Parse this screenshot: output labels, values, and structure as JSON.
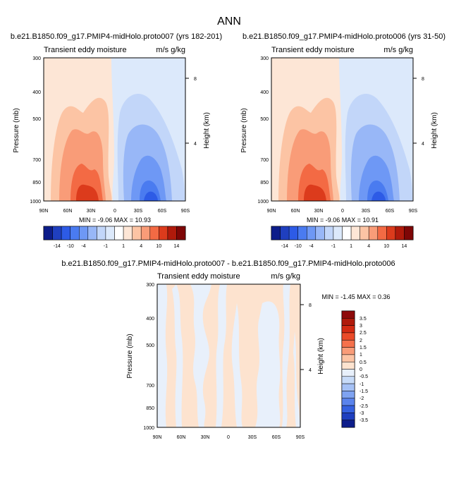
{
  "page_title": "ANN",
  "chart_data": [
    {
      "type": "heatmap",
      "title": "b.e21.B1850.f09_g17.PMIP4-midHolo.proto007 (yrs 182-201)",
      "subtitle_left": "Transient eddy moisture",
      "subtitle_right": "m/s g/kg",
      "ylabel": "Pressure (mb)",
      "ylabel_right": "Height (km)",
      "x_ticks": [
        "90N",
        "60N",
        "30N",
        "0",
        "30S",
        "60S",
        "90S"
      ],
      "y_ticks": [
        "300",
        "400",
        "500",
        "700",
        "850",
        "1000"
      ],
      "height_ticks": [
        "8",
        "4"
      ],
      "min_max": "MIN = -9.06   MAX = 10.93",
      "colorbar_labels": [
        "-14",
        "-10",
        "-4",
        "-1",
        "1",
        "4",
        "10",
        "14"
      ],
      "colorbar_colors": [
        "#0d1d8a",
        "#1f3fbf",
        "#2d5be6",
        "#4a7bf0",
        "#6e98f5",
        "#98b7f7",
        "#c2d6f9",
        "#dce9fb",
        "#ffffff",
        "#fde6d6",
        "#fcc4a4",
        "#f99c78",
        "#f36a44",
        "#dc3b1c",
        "#b01a0b",
        "#7e0606"
      ]
    },
    {
      "type": "heatmap",
      "title": "b.e21.B1850.f09_g17.PMIP4-midHolo.proto006 (yrs 31-50)",
      "subtitle_left": "Transient eddy moisture",
      "subtitle_right": "m/s g/kg",
      "ylabel": "Pressure (mb)",
      "ylabel_right": "Height (km)",
      "x_ticks": [
        "90N",
        "60N",
        "30N",
        "0",
        "30S",
        "60S",
        "90S"
      ],
      "y_ticks": [
        "300",
        "400",
        "500",
        "700",
        "850",
        "1000"
      ],
      "height_ticks": [
        "8",
        "4"
      ],
      "min_max": "MIN = -9.06   MAX = 10.91",
      "colorbar_labels": [
        "-14",
        "-10",
        "-4",
        "-1",
        "1",
        "4",
        "10",
        "14"
      ]
    },
    {
      "type": "heatmap",
      "title": "b.e21.B1850.f09_g17.PMIP4-midHolo.proto007 - b.e21.B1850.f09_g17.PMIP4-midHolo.proto006",
      "subtitle_left": "Transient eddy moisture",
      "subtitle_right": "m/s g/kg",
      "ylabel": "Pressure (mb)",
      "ylabel_right": "Height (km)",
      "x_ticks": [
        "90N",
        "60N",
        "30N",
        "0",
        "30S",
        "60S",
        "90S"
      ],
      "y_ticks": [
        "300",
        "400",
        "500",
        "700",
        "850",
        "1000"
      ],
      "height_ticks": [
        "8",
        "4"
      ],
      "min_max": "MIN = -1.45   MAX =  0.36",
      "colorbar_labels": [
        "3.5",
        "3",
        "2.5",
        "2",
        "1.5",
        "1",
        "0.5",
        "0",
        "-0.5",
        "-1",
        "-1.5",
        "-2",
        "-2.5",
        "-3",
        "-3.5"
      ],
      "colorbar_colors": [
        "#8e0a0a",
        "#b01a0b",
        "#d32a12",
        "#ea4a28",
        "#f5714c",
        "#f99c78",
        "#fcc4a4",
        "#fde3cf",
        "#e8f0fb",
        "#c7dbf8",
        "#a5c1f5",
        "#7fa3f1",
        "#5a83ec",
        "#3561e0",
        "#1e3fbf",
        "#0d1d8a"
      ]
    }
  ]
}
